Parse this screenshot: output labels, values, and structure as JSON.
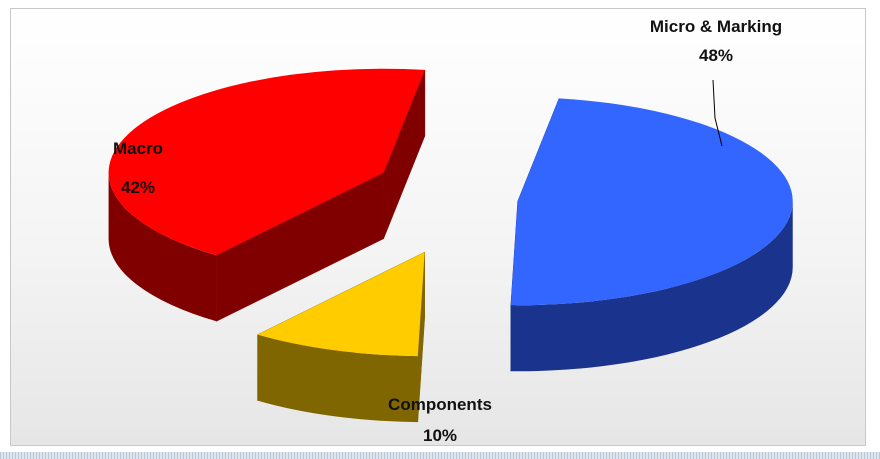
{
  "chart_data": {
    "type": "pie",
    "title": "",
    "slices": [
      {
        "name": "Micro & Marking",
        "value": 48,
        "label": "48%",
        "color": "#3366ff",
        "side_color": "#1a338c"
      },
      {
        "name": "Components",
        "value": 10,
        "label": "10%",
        "color": "#ffcc00",
        "side_color": "#806600"
      },
      {
        "name": "Macro",
        "value": 42,
        "label": "42%",
        "color": "#ff0000",
        "side_color": "#800000"
      }
    ],
    "exploded": true,
    "three_d": true
  }
}
